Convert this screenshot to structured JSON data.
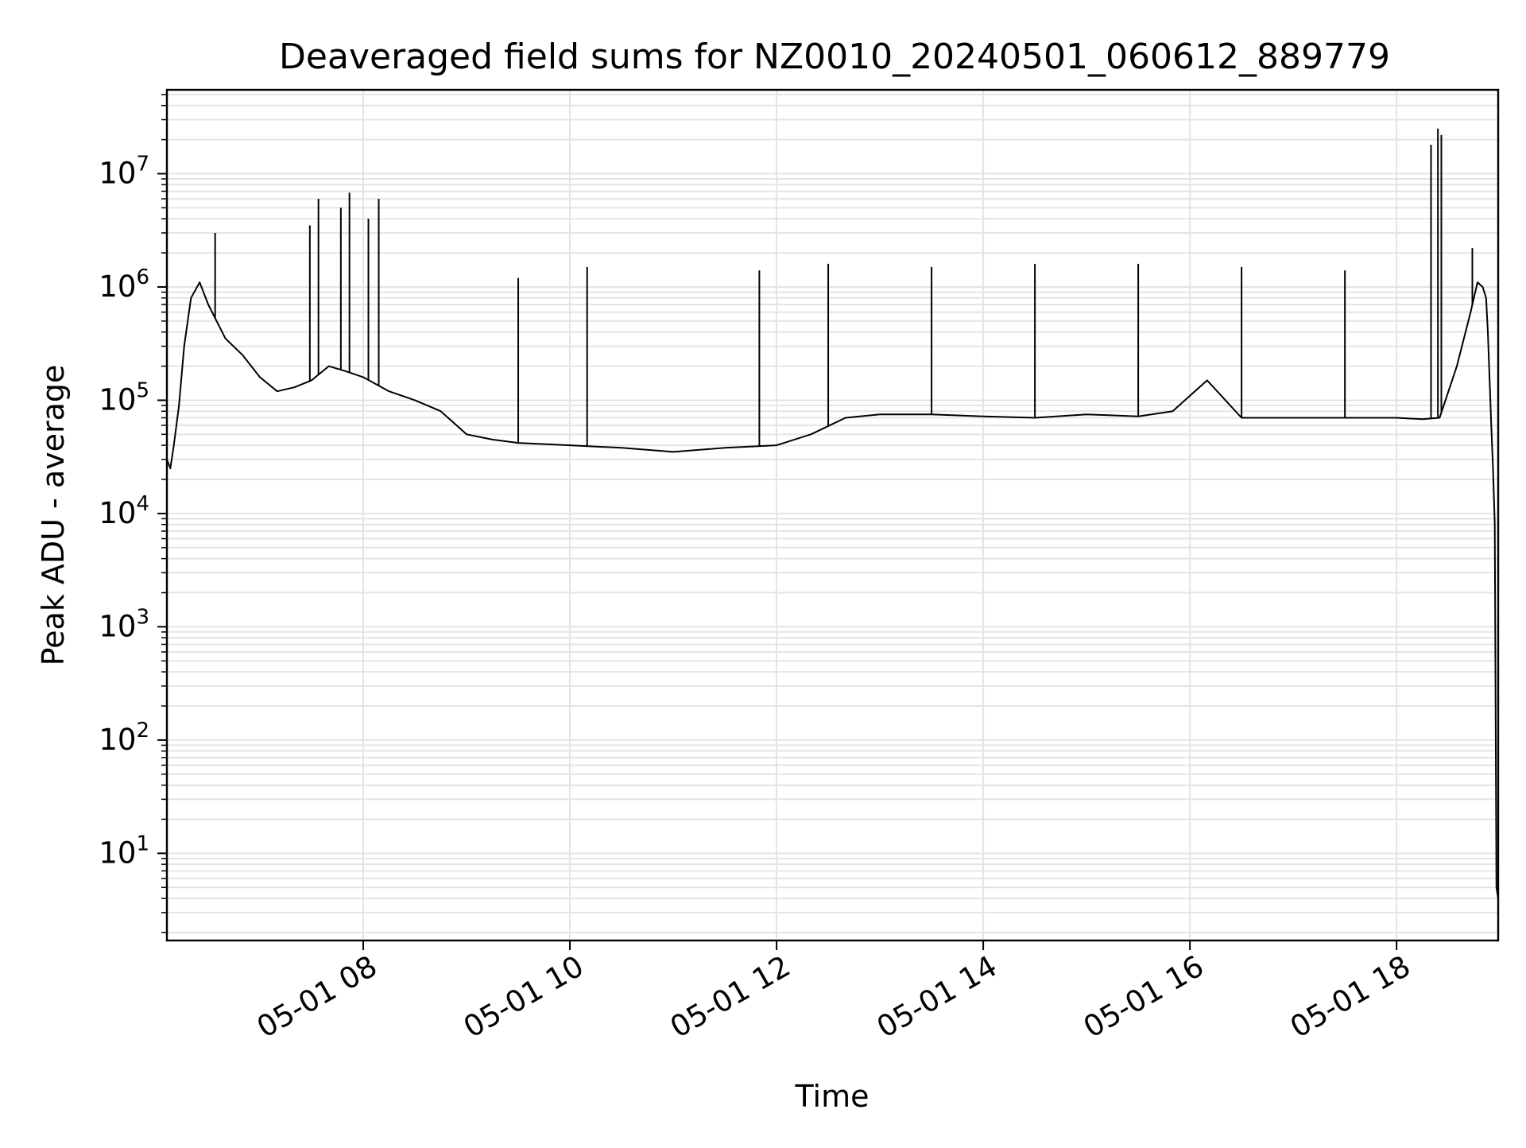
{
  "chart_data": {
    "type": "line",
    "title": "Deaveraged field sums for NZ0010_20240501_060612_889779",
    "xlabel": "Time",
    "ylabel": "Peak ADU - average",
    "yscale": "log",
    "grid": true,
    "legend": "none",
    "line_color": "#000000",
    "xlim": [
      "2024-05-01 06:06",
      "2024-05-01 18:59"
    ],
    "ylim": [
      1.7,
      55000000
    ],
    "x_ticks": [
      {
        "label": "05-01 08",
        "value": "2024-05-01 08:00"
      },
      {
        "label": "05-01 10",
        "value": "2024-05-01 10:00"
      },
      {
        "label": "05-01 12",
        "value": "2024-05-01 12:00"
      },
      {
        "label": "05-01 14",
        "value": "2024-05-01 14:00"
      },
      {
        "label": "05-01 16",
        "value": "2024-05-01 16:00"
      },
      {
        "label": "05-01 18",
        "value": "2024-05-01 18:00"
      }
    ],
    "y_ticks": [
      {
        "base": "10",
        "exp": "1",
        "value": 10
      },
      {
        "base": "10",
        "exp": "2",
        "value": 100
      },
      {
        "base": "10",
        "exp": "3",
        "value": 1000
      },
      {
        "base": "10",
        "exp": "4",
        "value": 10000
      },
      {
        "base": "10",
        "exp": "5",
        "value": 100000
      },
      {
        "base": "10",
        "exp": "6",
        "value": 1000000
      },
      {
        "base": "10",
        "exp": "7",
        "value": 10000000
      }
    ],
    "series": [
      {
        "x": [
          "2024-05-01 06:06",
          "2024-05-01 06:08",
          "2024-05-01 06:10",
          "2024-05-01 06:13",
          "2024-05-01 06:16",
          "2024-05-01 06:20",
          "2024-05-01 06:25",
          "2024-05-01 06:30",
          "2024-05-01 06:40",
          "2024-05-01 06:50",
          "2024-05-01 07:00",
          "2024-05-01 07:10",
          "2024-05-01 07:20",
          "2024-05-01 07:30",
          "2024-05-01 07:40",
          "2024-05-01 07:50",
          "2024-05-01 08:00",
          "2024-05-01 08:15",
          "2024-05-01 08:30",
          "2024-05-01 08:45",
          "2024-05-01 09:00",
          "2024-05-01 09:15",
          "2024-05-01 09:30",
          "2024-05-01 10:00",
          "2024-05-01 10:30",
          "2024-05-01 11:00",
          "2024-05-01 11:30",
          "2024-05-01 12:00",
          "2024-05-01 12:20",
          "2024-05-01 12:40",
          "2024-05-01 13:00",
          "2024-05-01 13:30",
          "2024-05-01 14:00",
          "2024-05-01 14:30",
          "2024-05-01 15:00",
          "2024-05-01 15:30",
          "2024-05-01 15:50",
          "2024-05-01 16:10",
          "2024-05-01 16:30",
          "2024-05-01 17:00",
          "2024-05-01 17:30",
          "2024-05-01 18:00",
          "2024-05-01 18:15",
          "2024-05-01 18:25",
          "2024-05-01 18:35",
          "2024-05-01 18:43",
          "2024-05-01 18:47",
          "2024-05-01 18:50",
          "2024-05-01 18:52",
          "2024-05-01 18:53",
          "2024-05-01 18:55",
          "2024-05-01 18:56",
          "2024-05-01 18:57",
          "2024-05-01 18:58",
          "2024-05-01 18:59"
        ],
        "y": [
          30000,
          25000,
          40000,
          90000,
          300000,
          800000,
          1100000,
          700000,
          350000,
          250000,
          160000,
          120000,
          130000,
          150000,
          200000,
          180000,
          160000,
          120000,
          100000,
          80000,
          50000,
          45000,
          42000,
          40000,
          38000,
          35000,
          38000,
          40000,
          50000,
          70000,
          75000,
          75000,
          72000,
          70000,
          75000,
          72000,
          80000,
          150000,
          70000,
          70000,
          70000,
          70000,
          68000,
          70000,
          200000,
          600000,
          1100000,
          1000000,
          800000,
          400000,
          60000,
          25000,
          8000,
          5,
          4
        ],
        "spikes": [
          {
            "x": "2024-05-01 06:34",
            "y": 3000000
          },
          {
            "x": "2024-05-01 07:29",
            "y": 3500000
          },
          {
            "x": "2024-05-01 07:34",
            "y": 6000000
          },
          {
            "x": "2024-05-01 07:47",
            "y": 5000000
          },
          {
            "x": "2024-05-01 07:52",
            "y": 6800000
          },
          {
            "x": "2024-05-01 08:03",
            "y": 4000000
          },
          {
            "x": "2024-05-01 08:09",
            "y": 6000000
          },
          {
            "x": "2024-05-01 09:30",
            "y": 1200000
          },
          {
            "x": "2024-05-01 10:10",
            "y": 1500000
          },
          {
            "x": "2024-05-01 11:50",
            "y": 1400000
          },
          {
            "x": "2024-05-01 12:30",
            "y": 1600000
          },
          {
            "x": "2024-05-01 13:30",
            "y": 1500000
          },
          {
            "x": "2024-05-01 14:30",
            "y": 1600000
          },
          {
            "x": "2024-05-01 15:30",
            "y": 1600000
          },
          {
            "x": "2024-05-01 16:30",
            "y": 1500000
          },
          {
            "x": "2024-05-01 17:30",
            "y": 1400000
          },
          {
            "x": "2024-05-01 18:20",
            "y": 18000000
          },
          {
            "x": "2024-05-01 18:24",
            "y": 25000000
          },
          {
            "x": "2024-05-01 18:26",
            "y": 22000000
          },
          {
            "x": "2024-05-01 18:44",
            "y": 2200000
          }
        ]
      }
    ]
  }
}
